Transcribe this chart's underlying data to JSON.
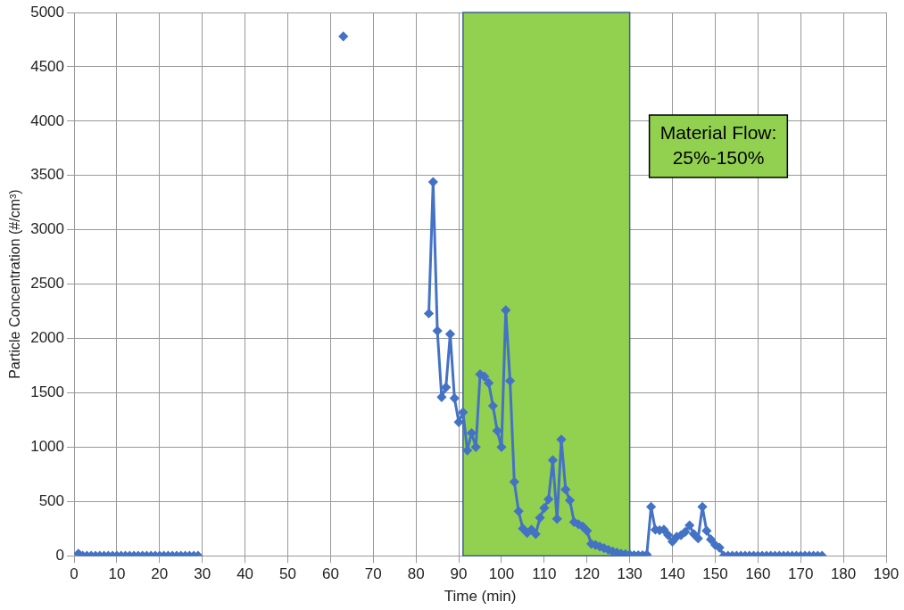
{
  "chart_data": {
    "type": "line",
    "xlabel": "Time (min)",
    "ylabel": "Particle Concentration (#/cm³)",
    "x": [
      1,
      2,
      3,
      4,
      5,
      6,
      7,
      8,
      9,
      10,
      11,
      12,
      13,
      14,
      15,
      16,
      17,
      18,
      19,
      20,
      21,
      22,
      23,
      24,
      25,
      26,
      27,
      28,
      29,
      30,
      31,
      32,
      33,
      34,
      35,
      36,
      37,
      38,
      39,
      40,
      41,
      42,
      43,
      44,
      45,
      46,
      47,
      48,
      49,
      50,
      51,
      52,
      53,
      54,
      55,
      56,
      57,
      58,
      59,
      60,
      61,
      62,
      63,
      64,
      65,
      66,
      67,
      68,
      69,
      70,
      71,
      72,
      73,
      74,
      75,
      76,
      77,
      78,
      79,
      80,
      81,
      82,
      83,
      84,
      85,
      86,
      87,
      88,
      89,
      90,
      91,
      92,
      93,
      94,
      95,
      96,
      97,
      98,
      99,
      100,
      101,
      102,
      103,
      104,
      105,
      106,
      107,
      108,
      109,
      110,
      111,
      112,
      113,
      114,
      115,
      116,
      117,
      118,
      119,
      120,
      121,
      122,
      123,
      124,
      125,
      126,
      127,
      128,
      129,
      130,
      131,
      132,
      133,
      134,
      135,
      136,
      137,
      138,
      139,
      140,
      141,
      142,
      143,
      144,
      145,
      146,
      147,
      148,
      149,
      150,
      151,
      152,
      153,
      154,
      155,
      156,
      157,
      158,
      159,
      160,
      161,
      162,
      163,
      164,
      165,
      166,
      167,
      168,
      169,
      170,
      171,
      172,
      173,
      174,
      175
    ],
    "series": [
      {
        "color": "#4472c4",
        "values": [
          20,
          0,
          0,
          0,
          0,
          0,
          0,
          0,
          0,
          0,
          0,
          0,
          0,
          0,
          0,
          0,
          0,
          0,
          0,
          0,
          0,
          0,
          0,
          0,
          0,
          0,
          0,
          0,
          0,
          null,
          null,
          null,
          null,
          null,
          null,
          null,
          null,
          null,
          null,
          null,
          null,
          null,
          null,
          null,
          null,
          null,
          null,
          null,
          null,
          null,
          null,
          null,
          null,
          null,
          null,
          null,
          null,
          null,
          null,
          null,
          null,
          null,
          4780,
          null,
          null,
          null,
          null,
          null,
          null,
          null,
          null,
          null,
          null,
          null,
          null,
          null,
          null,
          null,
          null,
          null,
          null,
          null,
          2230,
          3440,
          2070,
          1460,
          1550,
          2040,
          1450,
          1230,
          1320,
          970,
          1130,
          1000,
          1670,
          1650,
          1590,
          1380,
          1150,
          1000,
          2260,
          1610,
          680,
          410,
          250,
          210,
          240,
          200,
          350,
          440,
          520,
          880,
          340,
          1070,
          610,
          510,
          310,
          290,
          270,
          230,
          110,
          100,
          85,
          70,
          55,
          40,
          30,
          20,
          15,
          10,
          5,
          5,
          5,
          10,
          450,
          240,
          235,
          240,
          190,
          130,
          175,
          190,
          220,
          280,
          200,
          160,
          450,
          230,
          150,
          100,
          75,
          0,
          0,
          0,
          0,
          0,
          0,
          0,
          0,
          0,
          0,
          0,
          0,
          0,
          0,
          0,
          0,
          0,
          0,
          0,
          0,
          0,
          0,
          0,
          0
        ]
      }
    ],
    "xlim": [
      0,
      190
    ],
    "xticks": [
      0,
      10,
      20,
      30,
      40,
      50,
      60,
      70,
      80,
      90,
      100,
      110,
      120,
      130,
      140,
      150,
      160,
      170,
      180,
      190
    ],
    "ylim": [
      0,
      5000
    ],
    "yticks": [
      0,
      500,
      1000,
      1500,
      2000,
      2500,
      3000,
      3500,
      4000,
      4500,
      5000
    ],
    "bands": [
      {
        "axis": "x",
        "from": 91,
        "to": 130,
        "label": "Material Flow:\n25%-150%",
        "color": "#92d050"
      }
    ],
    "grid": true,
    "legend": false,
    "marker": "diamond",
    "line_style": "solid"
  }
}
